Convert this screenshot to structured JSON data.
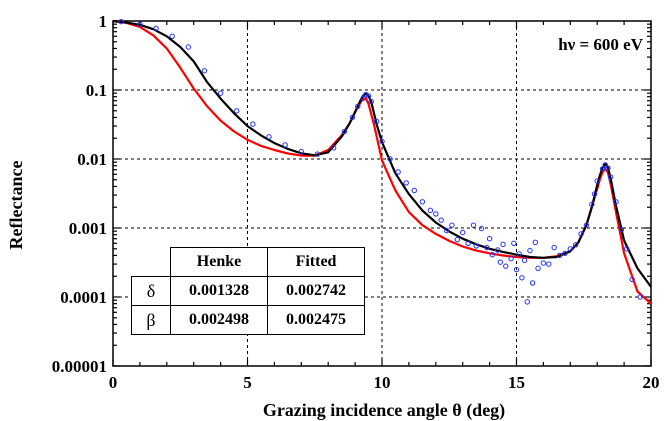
{
  "chart_data": {
    "type": "line",
    "annotation": "hν = 600 eV",
    "xlabel": "Grazing incidence angle θ (deg)",
    "ylabel": "Reflectance",
    "xlim": [
      0,
      20
    ],
    "ylim": [
      1e-05,
      1
    ],
    "yscale": "log",
    "grid": true,
    "x_ticks": [
      0,
      5,
      10,
      15,
      20
    ],
    "x_tick_labels": [
      "0",
      "5",
      "10",
      "15",
      "20"
    ],
    "y_ticks": [
      1,
      0.1,
      0.01,
      0.001,
      0.0001,
      1e-05
    ],
    "y_tick_labels": [
      "1",
      "0.1",
      "0.01",
      "0.001",
      "0.0001",
      "0.00001"
    ],
    "series": [
      {
        "style": "line",
        "color": "#ff0000",
        "x": [
          0,
          0.5,
          1,
          1.5,
          2,
          2.5,
          3,
          3.5,
          4,
          4.5,
          5,
          5.5,
          6,
          6.5,
          7,
          7.5,
          8,
          8.5,
          8.8,
          9.0,
          9.2,
          9.3,
          9.4,
          9.5,
          9.7,
          10.0,
          10.5,
          11,
          11.5,
          12,
          12.5,
          13,
          13.5,
          14,
          14.5,
          15,
          15.5,
          16,
          16.5,
          17,
          17.3,
          17.6,
          17.8,
          18.0,
          18.1,
          18.2,
          18.3,
          18.4,
          18.5,
          18.7,
          19,
          19.5,
          20
        ],
        "y": [
          1.0,
          0.94,
          0.82,
          0.62,
          0.4,
          0.21,
          0.105,
          0.058,
          0.036,
          0.025,
          0.019,
          0.0155,
          0.0135,
          0.012,
          0.0112,
          0.0112,
          0.0135,
          0.022,
          0.033,
          0.048,
          0.066,
          0.075,
          0.075,
          0.063,
          0.032,
          0.0095,
          0.0035,
          0.0017,
          0.0011,
          0.00082,
          0.00065,
          0.00054,
          0.00047,
          0.00043,
          0.0004,
          0.00038,
          0.00037,
          0.00037,
          0.00039,
          0.00046,
          0.00062,
          0.0011,
          0.002,
          0.0037,
          0.0051,
          0.0065,
          0.0072,
          0.0063,
          0.0043,
          0.0017,
          0.00043,
          0.00012,
          8e-05
        ]
      },
      {
        "style": "line",
        "color": "#000000",
        "x": [
          0,
          0.5,
          1,
          1.5,
          2,
          2.5,
          3,
          3.5,
          4,
          4.5,
          5,
          5.5,
          6,
          6.5,
          7,
          7.5,
          8,
          8.5,
          8.8,
          9.0,
          9.2,
          9.3,
          9.4,
          9.5,
          9.6,
          9.8,
          10.0,
          10.5,
          11,
          11.5,
          12,
          12.5,
          13,
          13.5,
          14,
          14.5,
          15,
          15.5,
          16,
          16.5,
          17,
          17.3,
          17.6,
          17.8,
          18.0,
          18.1,
          18.2,
          18.3,
          18.4,
          18.5,
          18.7,
          19,
          19.5,
          20
        ],
        "y": [
          1.0,
          0.95,
          0.88,
          0.76,
          0.6,
          0.42,
          0.26,
          0.13,
          0.075,
          0.046,
          0.03,
          0.022,
          0.017,
          0.014,
          0.0121,
          0.0113,
          0.0125,
          0.021,
          0.033,
          0.048,
          0.071,
          0.083,
          0.088,
          0.082,
          0.068,
          0.032,
          0.0175,
          0.0062,
          0.0031,
          0.0018,
          0.0012,
          0.00089,
          0.0007,
          0.00058,
          0.0005,
          0.00045,
          0.00041,
          0.00038,
          0.00037,
          0.00038,
          0.00046,
          0.00062,
          0.0011,
          0.002,
          0.0042,
          0.0058,
          0.0075,
          0.0085,
          0.0075,
          0.0052,
          0.0021,
          0.00066,
          0.00026,
          0.00014
        ]
      },
      {
        "style": "scatter",
        "color": "#2233ff",
        "x": [
          0.3,
          1.0,
          1.6,
          2.2,
          2.8,
          3.4,
          4.0,
          4.6,
          5.2,
          5.8,
          6.4,
          7.0,
          7.6,
          8.2,
          8.6,
          8.9,
          9.1,
          9.3,
          9.4,
          9.5,
          9.6,
          9.8,
          10.0,
          10.3,
          10.6,
          10.9,
          11.2,
          11.5,
          11.8,
          12.0,
          12.2,
          12.4,
          12.6,
          12.8,
          13.0,
          13.2,
          13.4,
          13.5,
          13.7,
          13.9,
          14.0,
          14.1,
          14.3,
          14.4,
          14.5,
          14.6,
          14.8,
          14.9,
          15.0,
          15.1,
          15.2,
          15.3,
          15.4,
          15.5,
          15.6,
          15.7,
          15.8,
          16.0,
          16.2,
          16.4,
          16.6,
          16.8,
          17.0,
          17.2,
          17.4,
          17.6,
          17.8,
          17.9,
          18.0,
          18.2,
          18.3,
          18.4,
          18.5,
          18.7,
          18.9,
          19.1,
          19.3,
          19.6
        ],
        "y": [
          0.98,
          0.9,
          0.78,
          0.6,
          0.42,
          0.19,
          0.09,
          0.05,
          0.032,
          0.021,
          0.016,
          0.0128,
          0.0118,
          0.0145,
          0.025,
          0.04,
          0.058,
          0.076,
          0.086,
          0.082,
          0.068,
          0.035,
          0.018,
          0.01,
          0.0065,
          0.0045,
          0.0035,
          0.0024,
          0.0018,
          0.0016,
          0.0013,
          0.00092,
          0.0011,
          0.00068,
          0.00086,
          0.0006,
          0.0011,
          0.00055,
          0.00098,
          0.00052,
          0.0007,
          0.00041,
          0.00048,
          0.00032,
          0.00058,
          0.00028,
          0.00036,
          0.0006,
          0.00025,
          0.00042,
          0.00019,
          0.00034,
          8.5e-05,
          0.00047,
          0.00016,
          0.00062,
          0.00026,
          0.00031,
          0.0003,
          0.00052,
          0.0004,
          0.00043,
          0.0005,
          0.00057,
          0.00082,
          0.0011,
          0.0022,
          0.0031,
          0.0048,
          0.0072,
          0.0082,
          0.0074,
          0.0055,
          0.0024,
          0.00095,
          0.0005,
          0.00018,
          0.0001
        ]
      }
    ]
  },
  "table": {
    "header": [
      "",
      "Henke",
      "Fitted"
    ],
    "rows": [
      {
        "symbol": "δ",
        "henke": "0.001328",
        "fitted": "0.002742"
      },
      {
        "symbol": "β",
        "henke": "0.002498",
        "fitted": "0.002475"
      }
    ]
  }
}
